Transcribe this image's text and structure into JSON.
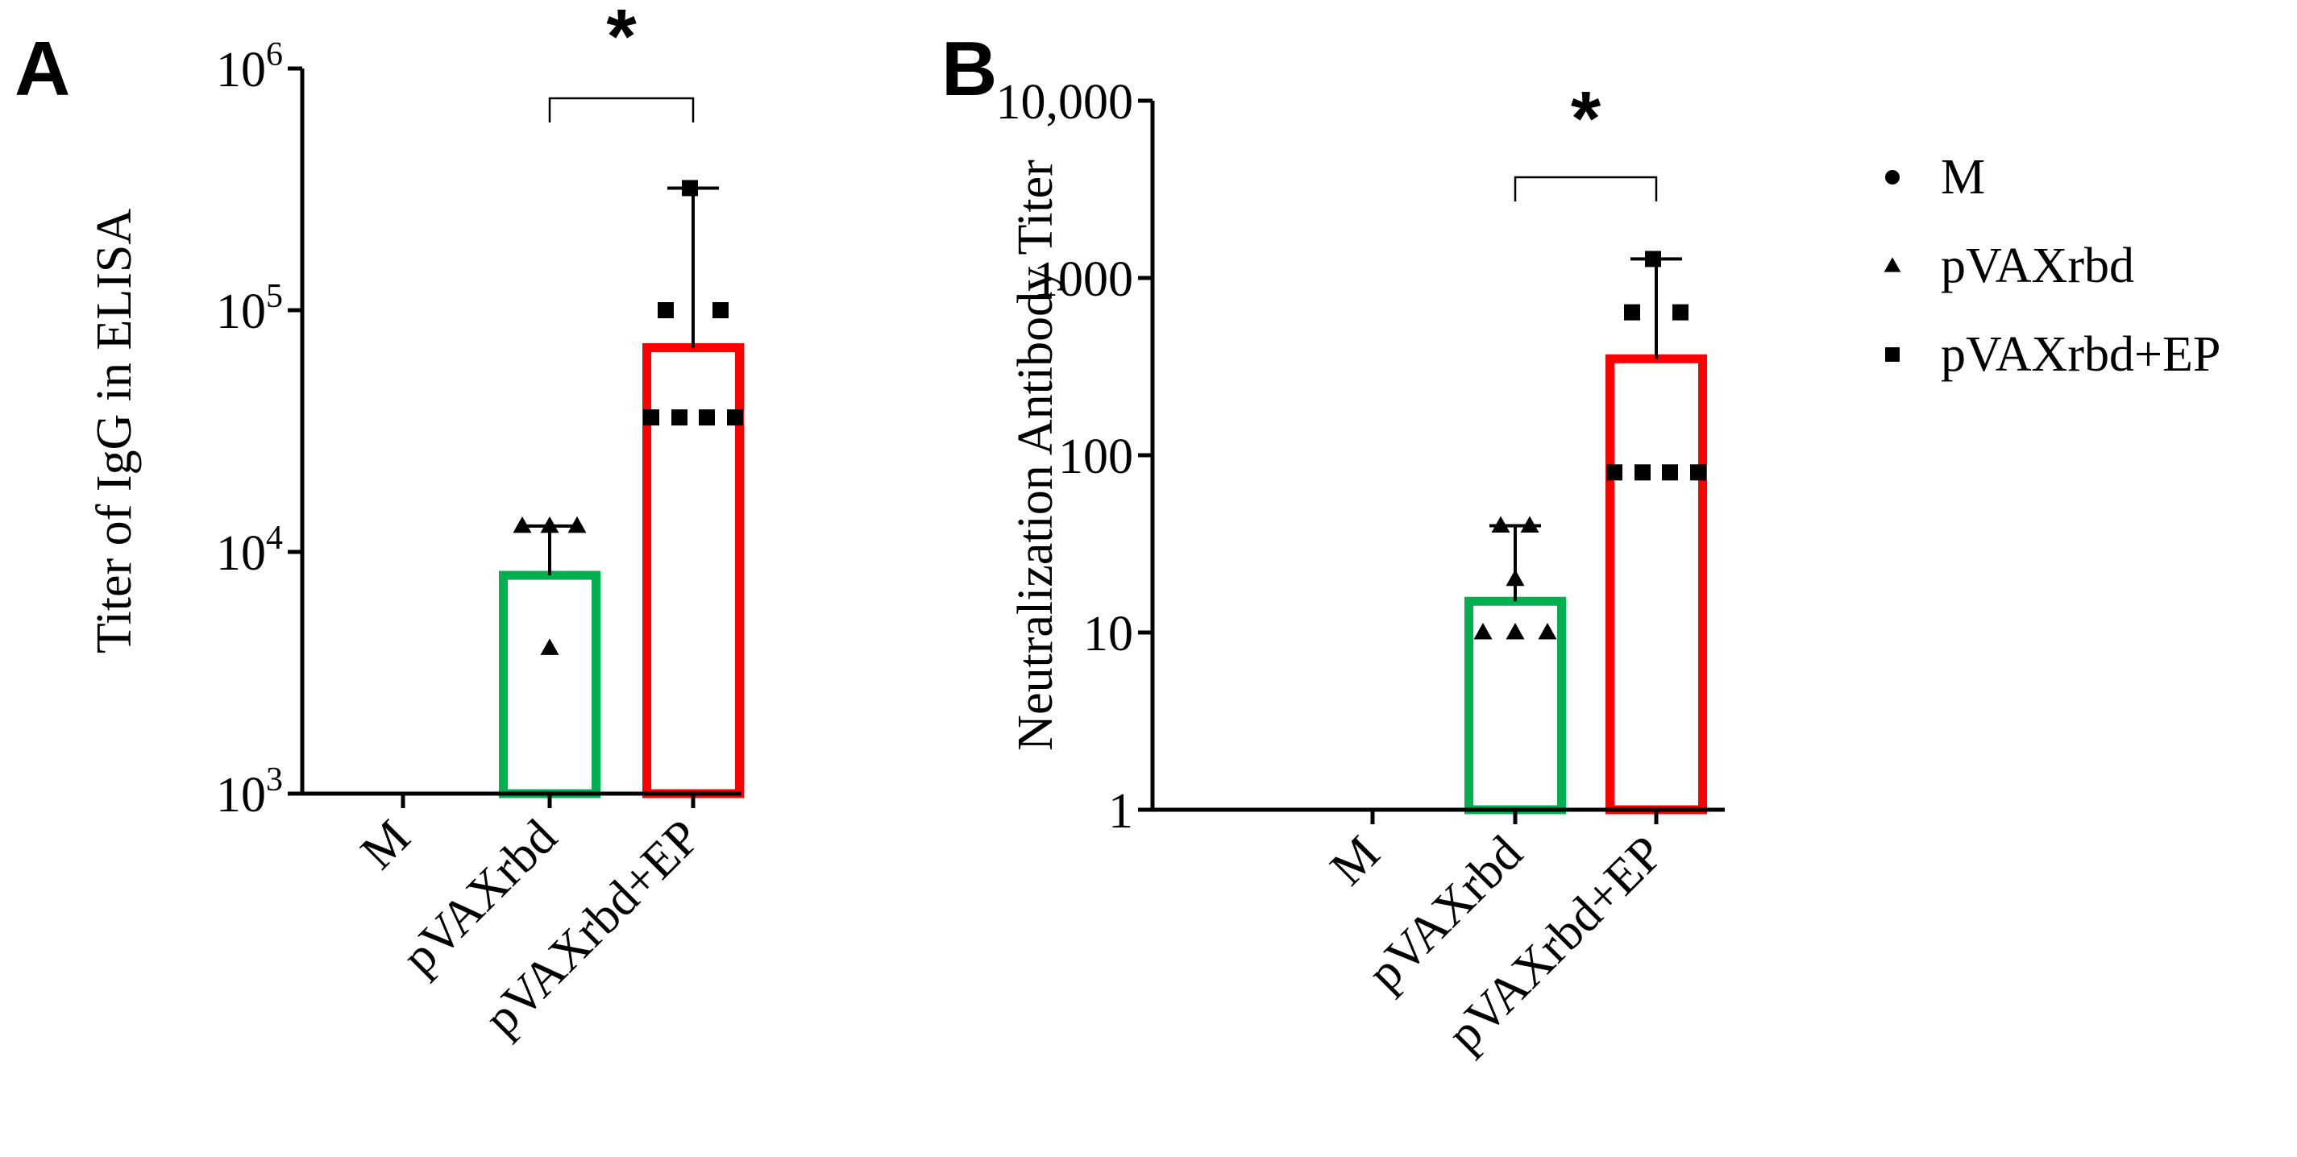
{
  "legend": {
    "items": [
      {
        "label": "M",
        "marker": "circle"
      },
      {
        "label": "pVAXrbd",
        "marker": "triangle"
      },
      {
        "label": "pVAXrbd+EP",
        "marker": "square"
      }
    ]
  },
  "chart_data": [
    {
      "panel": "A",
      "type": "bar",
      "scale": "log",
      "title": "",
      "xlabel": "",
      "ylabel": "Titer of IgG in ELISA",
      "ylim": [
        1000,
        1000000
      ],
      "yticks": [
        {
          "value": 1000,
          "base": "10",
          "exp": "3"
        },
        {
          "value": 10000,
          "base": "10",
          "exp": "4"
        },
        {
          "value": 100000,
          "base": "10",
          "exp": "5"
        },
        {
          "value": 1000000,
          "base": "10",
          "exp": "6"
        }
      ],
      "categories": [
        "M",
        "pVAXrbd",
        "pVAXrbd+EP"
      ],
      "bar_colors": [
        "#00b050",
        "#00b050",
        "#ff0000"
      ],
      "values": [
        null,
        8000,
        70000
      ],
      "error_high": [
        null,
        12800,
        320000
      ],
      "marker_shapes": [
        "circle",
        "triangle",
        "square"
      ],
      "points": [
        [],
        [
          12800,
          12800,
          12800,
          4000
        ],
        [
          320000,
          100000,
          100000,
          36000,
          36000,
          36000,
          36000
        ]
      ],
      "significance": {
        "from": 1,
        "to": 2,
        "label": "*"
      }
    },
    {
      "panel": "B",
      "type": "bar",
      "scale": "log",
      "title": "",
      "xlabel": "",
      "ylabel": "Neutralization Antibody Titer",
      "ylim": [
        1,
        10000
      ],
      "yticks": [
        {
          "value": 1,
          "label": "1"
        },
        {
          "value": 10,
          "label": "10"
        },
        {
          "value": 100,
          "label": "100"
        },
        {
          "value": 1000,
          "label": "1000"
        },
        {
          "value": 10000,
          "label": "10,000"
        }
      ],
      "categories": [
        "M",
        "pVAXrbd",
        "pVAXrbd+EP"
      ],
      "bar_colors": [
        "#00b050",
        "#00b050",
        "#ff0000"
      ],
      "values": [
        null,
        15,
        350
      ],
      "error_high": [
        null,
        40,
        1280
      ],
      "marker_shapes": [
        "circle",
        "triangle",
        "square"
      ],
      "points": [
        [],
        [
          40,
          40,
          20,
          10,
          10,
          10
        ],
        [
          1280,
          640,
          640,
          80,
          80,
          80,
          80
        ]
      ],
      "significance": {
        "from": 1,
        "to": 2,
        "label": "*"
      }
    }
  ]
}
